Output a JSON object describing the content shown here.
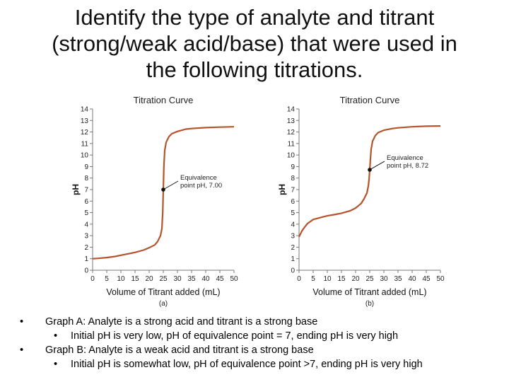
{
  "title_lines": [
    "Identify the type of analyte and titrant",
    "(strong/weak acid/base) that were used in",
    "the following titrations."
  ],
  "bullet_marker": "•",
  "bullets": [
    {
      "level": 1,
      "text": "Graph A: Analyte is a strong acid and titrant is a strong base"
    },
    {
      "level": 2,
      "text": "Initial pH is very low, pH of equivalence point = 7, ending pH is very high"
    },
    {
      "level": 1,
      "text": "Graph B: Analyte is a weak acid and titrant is a strong base"
    },
    {
      "level": 2,
      "text": "Initial pH is somewhat low, pH of equivalence point >7, ending pH is very high"
    }
  ],
  "curve_color": "#b5532c",
  "chart_data": [
    {
      "type": "line",
      "title": "Titration Curve",
      "xlabel": "Volume of Titrant added (mL)",
      "ylabel": "pH",
      "caption": "(a)",
      "xlim": [
        0,
        50
      ],
      "ylim": [
        0,
        14
      ],
      "xticks": [
        0,
        5,
        10,
        15,
        20,
        25,
        30,
        35,
        40,
        45,
        50
      ],
      "yticks": [
        0,
        1,
        2,
        3,
        4,
        5,
        6,
        7,
        8,
        9,
        10,
        11,
        12,
        13,
        14
      ],
      "grid": false,
      "series": [
        {
          "x": [
            0,
            2,
            5,
            8,
            10,
            13,
            15,
            18,
            20,
            22,
            23,
            24,
            24.5,
            24.8,
            25,
            25.2,
            25.5,
            26,
            27,
            28,
            30,
            33,
            35,
            40,
            45,
            50
          ],
          "y": [
            1.0,
            1.03,
            1.1,
            1.2,
            1.3,
            1.45,
            1.55,
            1.75,
            1.95,
            2.2,
            2.5,
            3.0,
            3.6,
            5.0,
            7.0,
            9.0,
            10.4,
            11.1,
            11.6,
            11.85,
            12.05,
            12.25,
            12.3,
            12.38,
            12.42,
            12.45
          ]
        }
      ],
      "annotations": [
        {
          "text": [
            "Equivalence",
            "point pH, 7.00"
          ],
          "x": 25,
          "y": 7.0
        }
      ]
    },
    {
      "type": "line",
      "title": "Titration Curve",
      "xlabel": "Volume of Titrant added (mL)",
      "ylabel": "pH",
      "caption": "(b)",
      "xlim": [
        0,
        50
      ],
      "ylim": [
        0,
        14
      ],
      "xticks": [
        0,
        5,
        10,
        15,
        20,
        25,
        30,
        35,
        40,
        45,
        50
      ],
      "yticks": [
        0,
        1,
        2,
        3,
        4,
        5,
        6,
        7,
        8,
        9,
        10,
        11,
        12,
        13,
        14
      ],
      "grid": false,
      "series": [
        {
          "x": [
            0,
            1,
            2,
            3,
            5,
            8,
            10,
            13,
            15,
            18,
            20,
            22,
            23,
            24,
            24.5,
            24.8,
            25,
            25.2,
            25.5,
            26,
            27,
            28,
            30,
            33,
            35,
            40,
            45,
            50
          ],
          "y": [
            2.9,
            3.4,
            3.75,
            4.05,
            4.4,
            4.6,
            4.72,
            4.85,
            4.95,
            5.15,
            5.4,
            5.8,
            6.2,
            6.7,
            7.3,
            8.0,
            8.72,
            9.5,
            10.5,
            11.2,
            11.7,
            11.95,
            12.15,
            12.3,
            12.36,
            12.45,
            12.5,
            12.52
          ]
        }
      ],
      "annotations": [
        {
          "text": [
            "Equivalence",
            "point pH, 8.72"
          ],
          "x": 25,
          "y": 8.72
        }
      ]
    }
  ]
}
